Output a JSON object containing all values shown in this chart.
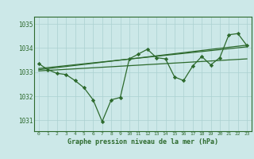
{
  "x": [
    0,
    1,
    2,
    3,
    4,
    5,
    6,
    7,
    8,
    9,
    10,
    11,
    12,
    13,
    14,
    15,
    16,
    17,
    18,
    19,
    20,
    21,
    22,
    23
  ],
  "y_main": [
    1033.35,
    1033.1,
    1032.95,
    1032.9,
    1032.65,
    1032.35,
    1031.85,
    1030.95,
    1031.85,
    1031.95,
    1033.55,
    1033.75,
    1033.95,
    1033.6,
    1033.55,
    1032.8,
    1032.65,
    1033.25,
    1033.65,
    1033.3,
    1033.6,
    1034.55,
    1034.6,
    1034.1
  ],
  "trend1_x": [
    0,
    23
  ],
  "trend1_y": [
    1033.15,
    1034.05
  ],
  "trend2_x": [
    0,
    23
  ],
  "trend2_y": [
    1033.1,
    1034.12
  ],
  "trend3_x": [
    0,
    23
  ],
  "trend3_y": [
    1033.05,
    1033.55
  ],
  "line_color": "#2d6a2d",
  "bg_color": "#cce8e8",
  "grid_color": "#aad0d0",
  "xlabel": "Graphe pression niveau de la mer (hPa)",
  "ylim": [
    1030.55,
    1035.3
  ],
  "yticks": [
    1031,
    1032,
    1033,
    1034,
    1035
  ],
  "xticks": [
    0,
    1,
    2,
    3,
    4,
    5,
    6,
    7,
    8,
    9,
    10,
    11,
    12,
    13,
    14,
    15,
    16,
    17,
    18,
    19,
    20,
    21,
    22,
    23
  ],
  "xtick_labels": [
    "0",
    "1",
    "2",
    "3",
    "4",
    "5",
    "6",
    "7",
    "8",
    "9",
    "10",
    "11",
    "12",
    "13",
    "14",
    "15",
    "16",
    "17",
    "18",
    "19",
    "20",
    "21",
    "22",
    "23"
  ]
}
